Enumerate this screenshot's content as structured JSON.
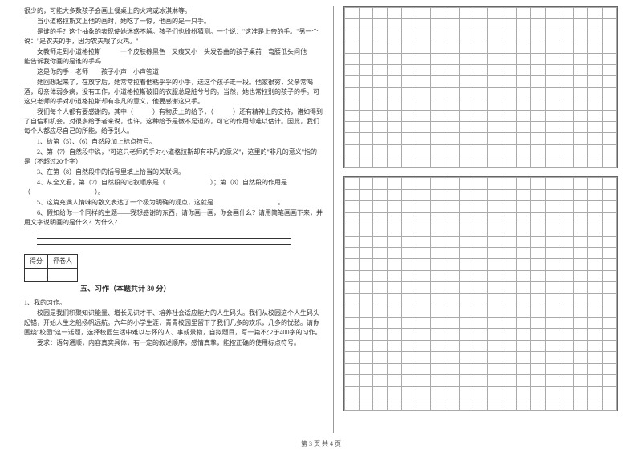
{
  "passage": {
    "p1": "很少的，可能大多数孩子会画上餐桌上的火鸡或冰淇淋等。",
    "p2": "当小道格拉斯文上他的画时，她吃了一惊，他画的是一只手。",
    "p3": "是谁的手？这个抽象的表现使她迷惑不解。孩子们也纷纷猜测。一个说：\"这准是上帝的手。\"另一个说：\"是农夫的手，因为农夫喂了火鸡。\"",
    "p4": "女教师走到小道格拉斯　　　一个皮肤棕黑色　又痩又小　头发卷曲的孩子桌前　弯腰低头问他　　能告诉我你画的是谁的手吗",
    "p5": "这是你的手　老师　　孩子小声　小声答道",
    "p6": "她回想起来了，在放学后，她常常拉着他粘乎乎的小手，送这个孩子走一段。他家很穷，父亲常喝酒，母亲体弱多病，没有工作，小道格拉斯破旧的衣服总是脏兮兮的。当然，她也常拉别的孩子的手。可这只老师的手对小道格拉斯却有非凡的意义，他要感谢这只手。",
    "p7": "我们每个人都有要感谢的，其中（　　　）有物质上的给予，（　　　）还有精神上的支持，诸如得到了自信和机会。对很多给予者来说，也许，这种给予是微不足道的，可它的作用却难以估计。因此，我们每个人都应尽自己的所能，给予别人。"
  },
  "questions": {
    "q1": "1、给第（5）、（6）自然段加上标点符号。",
    "q2a": "2、第（7）自然段中说，\"可这只老师的手对小道格拉斯却有非凡的意义\"，这里的\"非凡的意义\"指的是（不超过20个字）",
    "q3": "3、在第（8）自然段中的括号里填上恰当的关联词。",
    "q4": "4、从全文看，第（7）自然段的记叙顺序是（　　　　　　　）；第（8）自然段的作用是（　　　　　　　　　　）。",
    "q5": "5、这篇充满人情味的散文表达了一个极为明确的观点，这就是　　　　　　　　　　。",
    "q6": "6、假如给你一个同样的主题——我想感谢的东西，请你画一画，你会画什么？请用简笔画画下来，并用文字说明画的是什么？为什么？"
  },
  "scoreTable": {
    "col1": "得分",
    "col2": "评卷人"
  },
  "section5": {
    "title": "五、习作（本题共计 30 分）",
    "heading": "1、我的习作。",
    "body1": "校园是我们积聚知识能量、增长见识才干、培养社会适应能力的人生码头。我们从校园这个人生码头起锚，开始人生之船扬帆远航。六年的小学生涯，青青校园里留下了我们几多的欢乐，几多的忧愁。请你围绕\"校园\"这一话题，选择校园生活中难以忘怀的人、事或景物，自拟题目，写一篇不少于400字的习作。",
    "body2": "要求：语句通顺，内容真实具体，有一定的叙述顺序，感情真挚，能按正确的使用标点符号。"
  },
  "footer": "第 3 页 共 4 页",
  "style": {
    "gridRows1": 14,
    "gridRows2": 20,
    "gridCols": 19
  }
}
